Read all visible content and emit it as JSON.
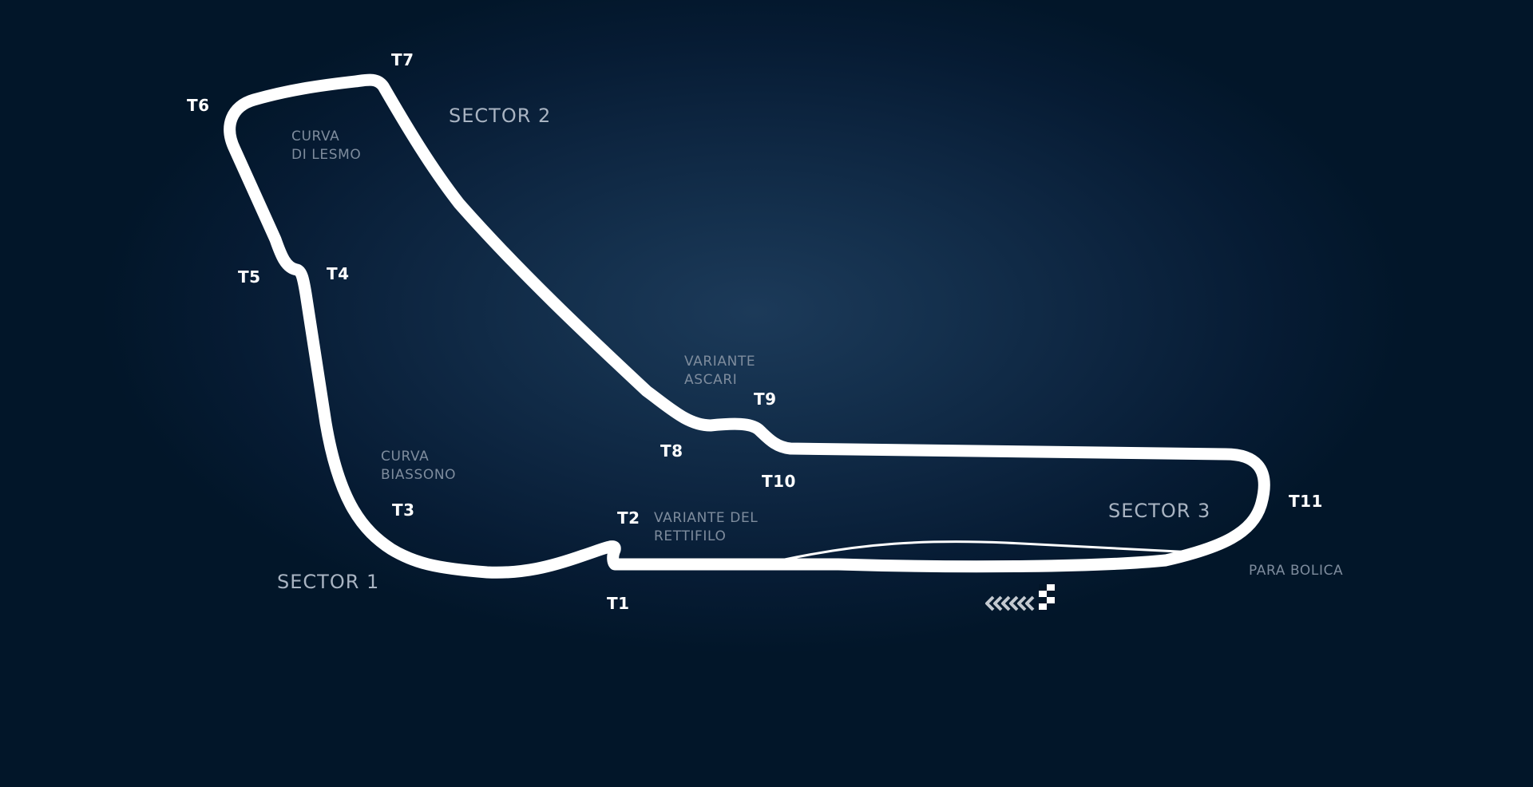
{
  "map": {
    "turns": [
      "T1",
      "T2",
      "T3",
      "T4",
      "T5",
      "T6",
      "T7",
      "T8",
      "T9",
      "T10",
      "T11"
    ],
    "sectors": [
      "SECTOR 1",
      "SECTOR 2",
      "SECTOR 3"
    ],
    "corners": {
      "lesmo": [
        "CURVA",
        "DI LESMO"
      ],
      "ascari": [
        "VARIANTE",
        "ASCARI"
      ],
      "biassono": [
        "CURVA",
        "BIASSONO"
      ],
      "rettifilo": [
        "VARIANTE DEL",
        "RETTIFILO"
      ],
      "bolica": [
        "PARA BOLICA"
      ]
    },
    "colors": {
      "background": "#021629",
      "track": "#ffffff",
      "turn_label": "#ffffff",
      "sector_label": "#a9b4c2",
      "corner_label": "#7e8c9d",
      "chevrons": "#c3c9d0"
    },
    "icons": [
      "chevrons-left-icon",
      "checkered-flag-icon"
    ]
  }
}
